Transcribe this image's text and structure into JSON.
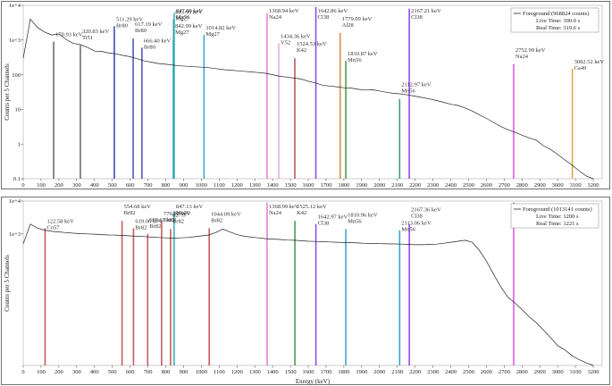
{
  "chart_data": [
    {
      "type": "line",
      "panel": "top",
      "xlabel": "Energy (keV)",
      "ylabel": "Counts per 5 Channels",
      "xlim": [
        0,
        3250
      ],
      "ylog": true,
      "ylim": [
        0.1,
        10000
      ],
      "x_ticks": [
        0,
        100,
        200,
        300,
        400,
        500,
        600,
        700,
        800,
        900,
        1000,
        1100,
        1200,
        1300,
        1400,
        1500,
        1600,
        1700,
        1800,
        1900,
        2000,
        2100,
        2200,
        2300,
        2400,
        2500,
        2600,
        2700,
        2800,
        2900,
        3000,
        3100,
        3200
      ],
      "y_ticks": [
        {
          "value": 10000,
          "label": "1e+4"
        },
        {
          "value": 1000,
          "label": "1e+3"
        },
        {
          "value": 100,
          "label": "100"
        },
        {
          "value": 10,
          "label": "10"
        },
        {
          "value": 1,
          "label": "1"
        },
        {
          "value": 0.1,
          "label": "0.1"
        }
      ],
      "legend": {
        "placement": "top-right",
        "entries": [
          "Foreground (968824 counts)",
          "Live Time: 300.0 s",
          "Real Time: 319.6 s"
        ]
      },
      "spectrum": [
        [
          0,
          300
        ],
        [
          40,
          4000
        ],
        [
          80,
          2300
        ],
        [
          120,
          1700
        ],
        [
          160,
          1400
        ],
        [
          200,
          1500
        ],
        [
          240,
          1050
        ],
        [
          280,
          800
        ],
        [
          320,
          740
        ],
        [
          360,
          620
        ],
        [
          400,
          480
        ],
        [
          440,
          470
        ],
        [
          480,
          420
        ],
        [
          520,
          400
        ],
        [
          560,
          360
        ],
        [
          600,
          330
        ],
        [
          640,
          290
        ],
        [
          680,
          250
        ],
        [
          720,
          230
        ],
        [
          760,
          210
        ],
        [
          800,
          200
        ],
        [
          840,
          190
        ],
        [
          880,
          180
        ],
        [
          920,
          175
        ],
        [
          960,
          170
        ],
        [
          1000,
          165
        ],
        [
          1040,
          160
        ],
        [
          1080,
          150
        ],
        [
          1120,
          140
        ],
        [
          1160,
          135
        ],
        [
          1200,
          130
        ],
        [
          1240,
          125
        ],
        [
          1280,
          120
        ],
        [
          1320,
          115
        ],
        [
          1360,
          110
        ],
        [
          1400,
          100
        ],
        [
          1440,
          90
        ],
        [
          1480,
          85
        ],
        [
          1520,
          80
        ],
        [
          1560,
          75
        ],
        [
          1600,
          65
        ],
        [
          1640,
          58
        ],
        [
          1680,
          50
        ],
        [
          1720,
          47
        ],
        [
          1760,
          45
        ],
        [
          1800,
          42
        ],
        [
          1840,
          41
        ],
        [
          1880,
          38
        ],
        [
          1920,
          36
        ],
        [
          1960,
          37
        ],
        [
          2000,
          34
        ],
        [
          2040,
          31
        ],
        [
          2080,
          29
        ],
        [
          2120,
          28
        ],
        [
          2160,
          26
        ],
        [
          2200,
          24
        ],
        [
          2240,
          22
        ],
        [
          2280,
          20
        ],
        [
          2320,
          18
        ],
        [
          2360,
          16
        ],
        [
          2400,
          14
        ],
        [
          2440,
          13
        ],
        [
          2480,
          11
        ],
        [
          2520,
          9
        ],
        [
          2560,
          7
        ],
        [
          2600,
          5.5
        ],
        [
          2640,
          4.2
        ],
        [
          2680,
          3.2
        ],
        [
          2720,
          2.6
        ],
        [
          2760,
          2.2
        ],
        [
          2800,
          1.8
        ],
        [
          2840,
          1.5
        ],
        [
          2880,
          1.3
        ],
        [
          2920,
          0.9
        ],
        [
          2960,
          0.7
        ],
        [
          3000,
          0.5
        ],
        [
          3040,
          0.35
        ],
        [
          3080,
          0.25
        ],
        [
          3120,
          0.17
        ],
        [
          3160,
          0.12
        ],
        [
          3200,
          0.1
        ]
      ],
      "peaks": [
        {
          "energy": 170.93,
          "label": "170.93 keV",
          "nuclide": "",
          "top": 900,
          "color": "#555555"
        },
        {
          "energy": 320.83,
          "label": "320.83 keV",
          "nuclide": "Ti51",
          "top": 700,
          "color": "#555555"
        },
        {
          "energy": 511.29,
          "label": "511.29 keV",
          "nuclide": "Br80",
          "top": 2500,
          "color": "#1c2fa8"
        },
        {
          "energy": 617.19,
          "label": "617.19 keV",
          "nuclide": "Br80",
          "top": 1100,
          "color": "#3a3aa8"
        },
        {
          "energy": 666.4,
          "label": "666.40 keV",
          "nuclide": "Br80",
          "top": 600,
          "color": "#3a3aa8"
        },
        {
          "energy": 847.09,
          "label": "847.09 keV",
          "nuclide": "Mn56",
          "top": 6000,
          "color": "#1aa1b0"
        },
        {
          "energy": 843.99,
          "label": "843.99 keV",
          "nuclide": "Mg27",
          "top": 4000,
          "color": "#1aa1b0"
        },
        {
          "energy": 842.99,
          "label": "842.99 keV",
          "nuclide": "Mg27",
          "top": 1000,
          "color": "#1aa1b0"
        },
        {
          "energy": 1014.82,
          "label": "1014.82 keV",
          "nuclide": "Mg27",
          "top": 1400,
          "color": "#1f98c8"
        },
        {
          "energy": 1368.94,
          "label": "1368.94 keV",
          "nuclide": "Na24",
          "top": 6000,
          "color": "#e070d0"
        },
        {
          "energy": 1434.36,
          "label": "1434.36 keV",
          "nuclide": "V52",
          "top": 800,
          "color": "#e0a0e0"
        },
        {
          "energy": 1524.53,
          "label": "1524.53 keV",
          "nuclide": "K42",
          "top": 300,
          "color": "#b04040"
        },
        {
          "energy": 1642.86,
          "label": "1642.86 keV",
          "nuclide": "Cl38",
          "top": 9000,
          "color": "#8a2be2"
        },
        {
          "energy": 1779.09,
          "label": "1779.09 keV",
          "nuclide": "Al28",
          "top": 1600,
          "color": "#d08020"
        },
        {
          "energy": 1810.87,
          "label": "1810.87 keV",
          "nuclide": "Mn56",
          "top": 250,
          "color": "#2e8b2e"
        },
        {
          "energy": 2112.97,
          "label": "2112.97 keV",
          "nuclide": "Mn56",
          "top": 20,
          "color": "#2e8b57"
        },
        {
          "energy": 2167.21,
          "label": "2167.21 keV",
          "nuclide": "Cl38",
          "top": 8000,
          "color": "#8a2be2"
        },
        {
          "energy": 2752.99,
          "label": "2752.99 keV",
          "nuclide": "Na24",
          "top": 200,
          "color": "#e040e0"
        },
        {
          "energy": 3082.52,
          "label": "3082.52 keV",
          "nuclide": "Ca49",
          "top": 150,
          "color": "#d4a020"
        }
      ]
    },
    {
      "type": "line",
      "panel": "bottom",
      "xlabel": "Energy (keV)",
      "ylabel": "Counts per 5 Channels",
      "xlim": [
        0,
        3250
      ],
      "ylog": true,
      "ylim": [
        0.1,
        10000
      ],
      "x_ticks": [
        0,
        100,
        200,
        300,
        400,
        500,
        600,
        700,
        800,
        900,
        1000,
        1100,
        1200,
        1300,
        1400,
        1500,
        1600,
        1700,
        1800,
        1900,
        2000,
        2100,
        2200,
        2300,
        2400,
        2500,
        2600,
        2700,
        2800,
        2900,
        3000,
        3100,
        3200
      ],
      "y_ticks": [
        {
          "value": 10000,
          "label": "1e+4"
        },
        {
          "value": 1000,
          "label": "1e+3"
        }
      ],
      "legend": {
        "placement": "top-right",
        "entries": [
          "Foreground (1013141 counts)",
          "Live Time: 1200 s",
          "Real Time: 1221 s"
        ]
      },
      "spectrum": [
        [
          0,
          500
        ],
        [
          40,
          2000
        ],
        [
          80,
          1500
        ],
        [
          120,
          1300
        ],
        [
          160,
          1200
        ],
        [
          200,
          1150
        ],
        [
          240,
          1100
        ],
        [
          280,
          1050
        ],
        [
          320,
          1020
        ],
        [
          360,
          1000
        ],
        [
          400,
          980
        ],
        [
          440,
          950
        ],
        [
          480,
          930
        ],
        [
          520,
          920
        ],
        [
          560,
          900
        ],
        [
          600,
          870
        ],
        [
          640,
          850
        ],
        [
          680,
          830
        ],
        [
          720,
          800
        ],
        [
          760,
          780
        ],
        [
          800,
          760
        ],
        [
          840,
          740
        ],
        [
          880,
          760
        ],
        [
          920,
          780
        ],
        [
          960,
          820
        ],
        [
          1000,
          870
        ],
        [
          1040,
          930
        ],
        [
          1080,
          1100
        ],
        [
          1120,
          1400
        ],
        [
          1160,
          1150
        ],
        [
          1200,
          950
        ],
        [
          1240,
          850
        ],
        [
          1280,
          800
        ],
        [
          1320,
          760
        ],
        [
          1360,
          720
        ],
        [
          1400,
          700
        ],
        [
          1440,
          680
        ],
        [
          1480,
          650
        ],
        [
          1520,
          640
        ],
        [
          1560,
          620
        ],
        [
          1600,
          600
        ],
        [
          1640,
          590
        ],
        [
          1680,
          580
        ],
        [
          1720,
          570
        ],
        [
          1760,
          560
        ],
        [
          1800,
          550
        ],
        [
          1840,
          540
        ],
        [
          1880,
          530
        ],
        [
          1920,
          520
        ],
        [
          1960,
          515
        ],
        [
          2000,
          505
        ],
        [
          2040,
          500
        ],
        [
          2080,
          495
        ],
        [
          2120,
          490
        ],
        [
          2160,
          480
        ],
        [
          2200,
          470
        ],
        [
          2240,
          470
        ],
        [
          2280,
          480
        ],
        [
          2320,
          490
        ],
        [
          2360,
          520
        ],
        [
          2400,
          560
        ],
        [
          2440,
          600
        ],
        [
          2480,
          640
        ],
        [
          2520,
          560
        ],
        [
          2560,
          320
        ],
        [
          2600,
          150
        ],
        [
          2640,
          60
        ],
        [
          2680,
          25
        ],
        [
          2720,
          12
        ],
        [
          2760,
          8
        ],
        [
          2800,
          5
        ],
        [
          2840,
          3
        ],
        [
          2880,
          2
        ],
        [
          2920,
          1.2
        ],
        [
          2960,
          0.7
        ],
        [
          3000,
          0.4
        ],
        [
          3040,
          0.3
        ],
        [
          3080,
          0.2
        ],
        [
          3120,
          0.15
        ],
        [
          3160,
          0.12
        ],
        [
          3200,
          0.1
        ]
      ],
      "peaks": [
        {
          "energy": 122.58,
          "label": "122.58 keV",
          "nuclide": "Co57",
          "top": 1500,
          "color": "#c04040"
        },
        {
          "energy": 554.68,
          "label": "554.68 keV",
          "nuclide": "Br82",
          "top": 2500,
          "color": "#c04040"
        },
        {
          "energy": 619.06,
          "label": "619.06 keV",
          "nuclide": "Br82",
          "top": 1500,
          "color": "#c04040"
        },
        {
          "energy": 698.61,
          "label": "698.61 keV",
          "nuclide": "Br82",
          "top": 1000,
          "color": "#c04040"
        },
        {
          "energy": 776.92,
          "label": "776.92 keV",
          "nuclide": "Br82",
          "top": 2500,
          "color": "#c04040"
        },
        {
          "energy": 827.3,
          "label": "827.3",
          "nuclide": "Br82",
          "top": 1400,
          "color": "#c04040"
        },
        {
          "energy": 847.13,
          "label": "847.13 keV",
          "nuclide": "Mn56",
          "top": 5000,
          "color": "#1aa1b0"
        },
        {
          "energy": 1044.09,
          "label": "1044.09 keV",
          "nuclide": "Br82",
          "top": 1500,
          "color": "#c04040"
        },
        {
          "energy": 1368.99,
          "label": "1368.99 keV",
          "nuclide": "Na24",
          "top": 9000,
          "color": "#e070d0"
        },
        {
          "energy": 1525.12,
          "label": "1525.12 keV",
          "nuclide": "K42",
          "top": 2500,
          "color": "#2e8b2e"
        },
        {
          "energy": 1642.97,
          "label": "1642.97 keV",
          "nuclide": "Cl38",
          "top": 2000,
          "color": "#8a2be2"
        },
        {
          "energy": 1810.96,
          "label": "1810.96 keV",
          "nuclide": "Mn56",
          "top": 1400,
          "color": "#1f98c8"
        },
        {
          "energy": 2113.06,
          "label": "2113.06 keV",
          "nuclide": "Mn56",
          "top": 1300,
          "color": "#1f98c8"
        },
        {
          "energy": 2167.36,
          "label": "2167.36 keV",
          "nuclide": "Cl38",
          "top": 2000,
          "color": "#8a2be2"
        },
        {
          "energy": 2753.09,
          "label": "2753.09 keV",
          "nuclide": "Na24",
          "top": 9000,
          "color": "#e040e0"
        }
      ]
    }
  ]
}
